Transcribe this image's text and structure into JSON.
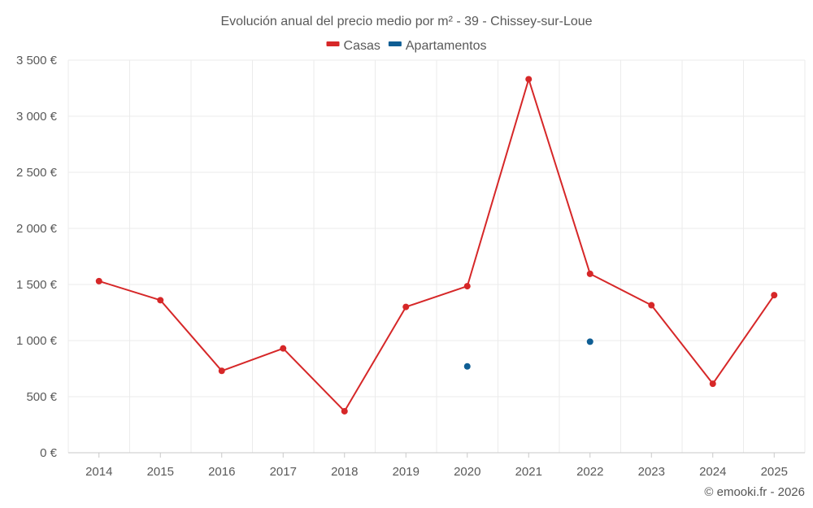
{
  "chart_data": {
    "type": "line",
    "title": "Evolución anual del precio medio por m² - 39 - Chissey-sur-Loue",
    "categories": [
      "2014",
      "2015",
      "2016",
      "2017",
      "2018",
      "2019",
      "2020",
      "2021",
      "2022",
      "2023",
      "2024",
      "2025"
    ],
    "series": [
      {
        "name": "Casas",
        "color": "#d62728",
        "values": [
          1530,
          1360,
          730,
          930,
          370,
          1300,
          1485,
          3330,
          1595,
          1315,
          615,
          1405
        ]
      },
      {
        "name": "Apartamentos",
        "color": "#0f5e94",
        "values": [
          null,
          null,
          null,
          null,
          null,
          null,
          770,
          null,
          990,
          null,
          null,
          null
        ]
      }
    ],
    "ylim": [
      0,
      3500
    ],
    "yticks": [
      0,
      500,
      1000,
      1500,
      2000,
      2500,
      3000,
      3500
    ],
    "ytick_labels": [
      "0 €",
      "500 €",
      "1 000 €",
      "1 500 €",
      "2 000 €",
      "2 500 €",
      "3 000 €",
      "3 500 €"
    ],
    "xlabel": "",
    "ylabel": "",
    "grid": true,
    "legend": "top-center",
    "credit": "© emooki.fr - 2026"
  }
}
